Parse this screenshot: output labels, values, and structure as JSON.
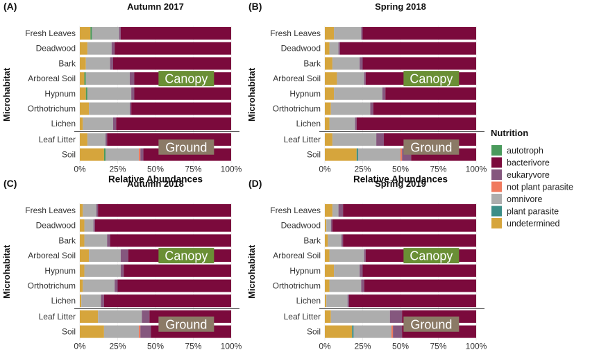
{
  "chart_data": {
    "type": "bar",
    "orientation": "horizontal-stacked",
    "xlabel": "Relative Abundances",
    "ylabel": "Microhabitat",
    "x_ticks": [
      "0%",
      "25%",
      "50%",
      "75%",
      "100%"
    ],
    "xlim": [
      0,
      100
    ],
    "legend": {
      "title": "Nutrition",
      "placement": "right",
      "entries": [
        {
          "name": "autotroph",
          "color": "#4a9a5c"
        },
        {
          "name": "bacterivore",
          "color": "#7b0a3c"
        },
        {
          "name": "eukaryvore",
          "color": "#85577e"
        },
        {
          "name": "not plant parasite",
          "color": "#f07a5e"
        },
        {
          "name": "omnivore",
          "color": "#adadad"
        },
        {
          "name": "plant parasite",
          "color": "#3d8e87"
        },
        {
          "name": "undetermined",
          "color": "#d6a53c"
        }
      ]
    },
    "stack_order": [
      "undetermined",
      "plant parasite",
      "autotroph",
      "omnivore",
      "not plant parasite",
      "eukaryvore",
      "bacterivore"
    ],
    "categories": [
      "Fresh Leaves",
      "Deadwood",
      "Bark",
      "Arboreal Soil",
      "Hypnum",
      "Orthotrichum",
      "Lichen",
      "Leaf Litter",
      "Soil"
    ],
    "group_labels": {
      "canopy": "Canopy",
      "ground": "Ground"
    },
    "panels": [
      {
        "label": "(A)",
        "title": "Autumn 2017",
        "rows": [
          {
            "undetermined": 7,
            "plant parasite": 0,
            "autotroph": 1,
            "omnivore": 18,
            "not plant parasite": 0,
            "eukaryvore": 1,
            "bacterivore": 73
          },
          {
            "undetermined": 5,
            "plant parasite": 0,
            "autotroph": 0,
            "omnivore": 16,
            "not plant parasite": 0,
            "eukaryvore": 2,
            "bacterivore": 77
          },
          {
            "undetermined": 4,
            "plant parasite": 0,
            "autotroph": 0,
            "omnivore": 16,
            "not plant parasite": 0,
            "eukaryvore": 2,
            "bacterivore": 78
          },
          {
            "undetermined": 3,
            "plant parasite": 0,
            "autotroph": 1,
            "omnivore": 29,
            "not plant parasite": 0,
            "eukaryvore": 3,
            "bacterivore": 64
          },
          {
            "undetermined": 4,
            "plant parasite": 0,
            "autotroph": 1,
            "omnivore": 29,
            "not plant parasite": 0,
            "eukaryvore": 2,
            "bacterivore": 64
          },
          {
            "undetermined": 6,
            "plant parasite": 0,
            "autotroph": 0,
            "omnivore": 27,
            "not plant parasite": 0,
            "eukaryvore": 1,
            "bacterivore": 66
          },
          {
            "undetermined": 2,
            "plant parasite": 0,
            "autotroph": 0,
            "omnivore": 20,
            "not plant parasite": 0,
            "eukaryvore": 2,
            "bacterivore": 76
          },
          {
            "undetermined": 5,
            "plant parasite": 0,
            "autotroph": 0,
            "omnivore": 12,
            "not plant parasite": 0,
            "eukaryvore": 1,
            "bacterivore": 82
          },
          {
            "undetermined": 16,
            "plant parasite": 0,
            "autotroph": 1,
            "omnivore": 22,
            "not plant parasite": 1,
            "eukaryvore": 2,
            "bacterivore": 58
          }
        ]
      },
      {
        "label": "(B)",
        "title": "Spring 2018",
        "rows": [
          {
            "undetermined": 6,
            "plant parasite": 0,
            "autotroph": 0,
            "omnivore": 18,
            "not plant parasite": 0,
            "eukaryvore": 1,
            "bacterivore": 75
          },
          {
            "undetermined": 3,
            "plant parasite": 0,
            "autotroph": 0,
            "omnivore": 6,
            "not plant parasite": 0,
            "eukaryvore": 1,
            "bacterivore": 90
          },
          {
            "undetermined": 5,
            "plant parasite": 0,
            "autotroph": 0,
            "omnivore": 18,
            "not plant parasite": 0,
            "eukaryvore": 2,
            "bacterivore": 75
          },
          {
            "undetermined": 8,
            "plant parasite": 0,
            "autotroph": 0,
            "omnivore": 18,
            "not plant parasite": 0,
            "eukaryvore": 1,
            "bacterivore": 73
          },
          {
            "undetermined": 6,
            "plant parasite": 0,
            "autotroph": 0,
            "omnivore": 32,
            "not plant parasite": 0,
            "eukaryvore": 2,
            "bacterivore": 60
          },
          {
            "undetermined": 4,
            "plant parasite": 0,
            "autotroph": 0,
            "omnivore": 26,
            "not plant parasite": 0,
            "eukaryvore": 2,
            "bacterivore": 68
          },
          {
            "undetermined": 3,
            "plant parasite": 0,
            "autotroph": 0,
            "omnivore": 17,
            "not plant parasite": 0,
            "eukaryvore": 1,
            "bacterivore": 79
          },
          {
            "undetermined": 5,
            "plant parasite": 0,
            "autotroph": 0,
            "omnivore": 29,
            "not plant parasite": 0,
            "eukaryvore": 5,
            "bacterivore": 61
          },
          {
            "undetermined": 21,
            "plant parasite": 1,
            "autotroph": 0,
            "omnivore": 28,
            "not plant parasite": 1,
            "eukaryvore": 6,
            "bacterivore": 43
          }
        ]
      },
      {
        "label": "(C)",
        "title": "Autumn 2018",
        "rows": [
          {
            "undetermined": 2,
            "plant parasite": 0,
            "autotroph": 0,
            "omnivore": 9,
            "not plant parasite": 0,
            "eukaryvore": 1,
            "bacterivore": 88
          },
          {
            "undetermined": 3,
            "plant parasite": 0,
            "autotroph": 0,
            "omnivore": 6,
            "not plant parasite": 0,
            "eukaryvore": 1,
            "bacterivore": 90
          },
          {
            "undetermined": 3,
            "plant parasite": 0,
            "autotroph": 0,
            "omnivore": 15,
            "not plant parasite": 0,
            "eukaryvore": 2,
            "bacterivore": 80
          },
          {
            "undetermined": 6,
            "plant parasite": 0,
            "autotroph": 0,
            "omnivore": 21,
            "not plant parasite": 0,
            "eukaryvore": 5,
            "bacterivore": 68
          },
          {
            "undetermined": 3,
            "plant parasite": 0,
            "autotroph": 0,
            "omnivore": 24,
            "not plant parasite": 0,
            "eukaryvore": 2,
            "bacterivore": 71
          },
          {
            "undetermined": 2,
            "plant parasite": 0,
            "autotroph": 0,
            "omnivore": 21,
            "not plant parasite": 0,
            "eukaryvore": 2,
            "bacterivore": 75
          },
          {
            "undetermined": 1,
            "plant parasite": 0,
            "autotroph": 0,
            "omnivore": 13,
            "not plant parasite": 0,
            "eukaryvore": 2,
            "bacterivore": 84
          },
          {
            "undetermined": 12,
            "plant parasite": 0,
            "autotroph": 0,
            "omnivore": 29,
            "not plant parasite": 0,
            "eukaryvore": 5,
            "bacterivore": 54
          },
          {
            "undetermined": 16,
            "plant parasite": 0,
            "autotroph": 0,
            "omnivore": 23,
            "not plant parasite": 1,
            "eukaryvore": 7,
            "bacterivore": 53
          }
        ]
      },
      {
        "label": "(D)",
        "title": "Spring 2019",
        "rows": [
          {
            "undetermined": 5,
            "plant parasite": 0,
            "autotroph": 0,
            "omnivore": 4,
            "not plant parasite": 0,
            "eukaryvore": 3,
            "bacterivore": 88
          },
          {
            "undetermined": 1,
            "plant parasite": 0,
            "autotroph": 0,
            "omnivore": 3,
            "not plant parasite": 0,
            "eukaryvore": 1,
            "bacterivore": 95
          },
          {
            "undetermined": 2,
            "plant parasite": 0,
            "autotroph": 0,
            "omnivore": 9,
            "not plant parasite": 0,
            "eukaryvore": 1,
            "bacterivore": 88
          },
          {
            "undetermined": 3,
            "plant parasite": 0,
            "autotroph": 0,
            "omnivore": 23,
            "not plant parasite": 0,
            "eukaryvore": 1,
            "bacterivore": 73
          },
          {
            "undetermined": 6,
            "plant parasite": 0,
            "autotroph": 0,
            "omnivore": 17,
            "not plant parasite": 0,
            "eukaryvore": 2,
            "bacterivore": 75
          },
          {
            "undetermined": 3,
            "plant parasite": 0,
            "autotroph": 0,
            "omnivore": 21,
            "not plant parasite": 0,
            "eukaryvore": 2,
            "bacterivore": 74
          },
          {
            "undetermined": 1,
            "plant parasite": 0,
            "autotroph": 0,
            "omnivore": 14,
            "not plant parasite": 0,
            "eukaryvore": 1,
            "bacterivore": 84
          },
          {
            "undetermined": 4,
            "plant parasite": 0,
            "autotroph": 0,
            "omnivore": 39,
            "not plant parasite": 0,
            "eukaryvore": 8,
            "bacterivore": 49
          },
          {
            "undetermined": 18,
            "plant parasite": 1,
            "autotroph": 0,
            "omnivore": 25,
            "not plant parasite": 1,
            "eukaryvore": 6,
            "bacterivore": 49
          }
        ]
      }
    ]
  }
}
